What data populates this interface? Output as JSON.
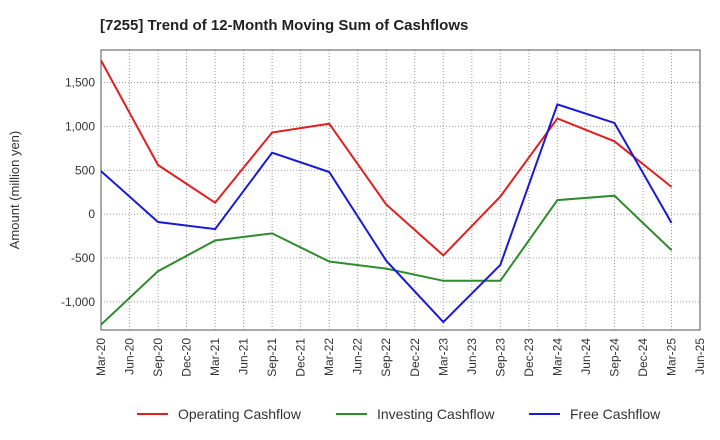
{
  "chart_data": {
    "type": "line",
    "title": "[7255]  Trend of 12-Month Moving Sum of Cashflows",
    "xlabel": "",
    "ylabel": "Amount (million yen)",
    "x_ticks": [
      "Mar-20",
      "Jun-20",
      "Sep-20",
      "Dec-20",
      "Mar-21",
      "Jun-21",
      "Sep-21",
      "Dec-21",
      "Mar-22",
      "Jun-22",
      "Sep-22",
      "Dec-22",
      "Mar-23",
      "Jun-23",
      "Sep-23",
      "Dec-23",
      "Mar-24",
      "Jun-24",
      "Sep-24",
      "Dec-24",
      "Mar-25",
      "Jun-25"
    ],
    "x": [
      "Mar-20",
      "Sep-20",
      "Mar-21",
      "Sep-21",
      "Mar-22",
      "Sep-22",
      "Mar-23",
      "Sep-23",
      "Mar-24",
      "Sep-24",
      "Mar-25"
    ],
    "y_ticks": [
      1500,
      1000,
      500,
      0,
      -500,
      -1000
    ],
    "y_tick_labels": [
      "1,500",
      "1,000",
      "500",
      "0",
      "-500",
      "-1,000"
    ],
    "ylim": [
      -1320,
      1870
    ],
    "grid": true,
    "legend_position": "bottom",
    "series": [
      {
        "name": "Operating Cashflow",
        "color": "#e02020",
        "values": [
          1750,
          560,
          130,
          930,
          1030,
          110,
          -470,
          200,
          1090,
          830,
          310
        ]
      },
      {
        "name": "Investing Cashflow",
        "color": "#2e8b2e",
        "values": [
          -1260,
          -650,
          -300,
          -220,
          -540,
          -620,
          -760,
          -760,
          160,
          210,
          -410
        ]
      },
      {
        "name": "Free Cashflow",
        "color": "#1a1ad6",
        "values": [
          490,
          -90,
          -170,
          700,
          480,
          -530,
          -1230,
          -580,
          1250,
          1040,
          -100
        ]
      }
    ]
  }
}
